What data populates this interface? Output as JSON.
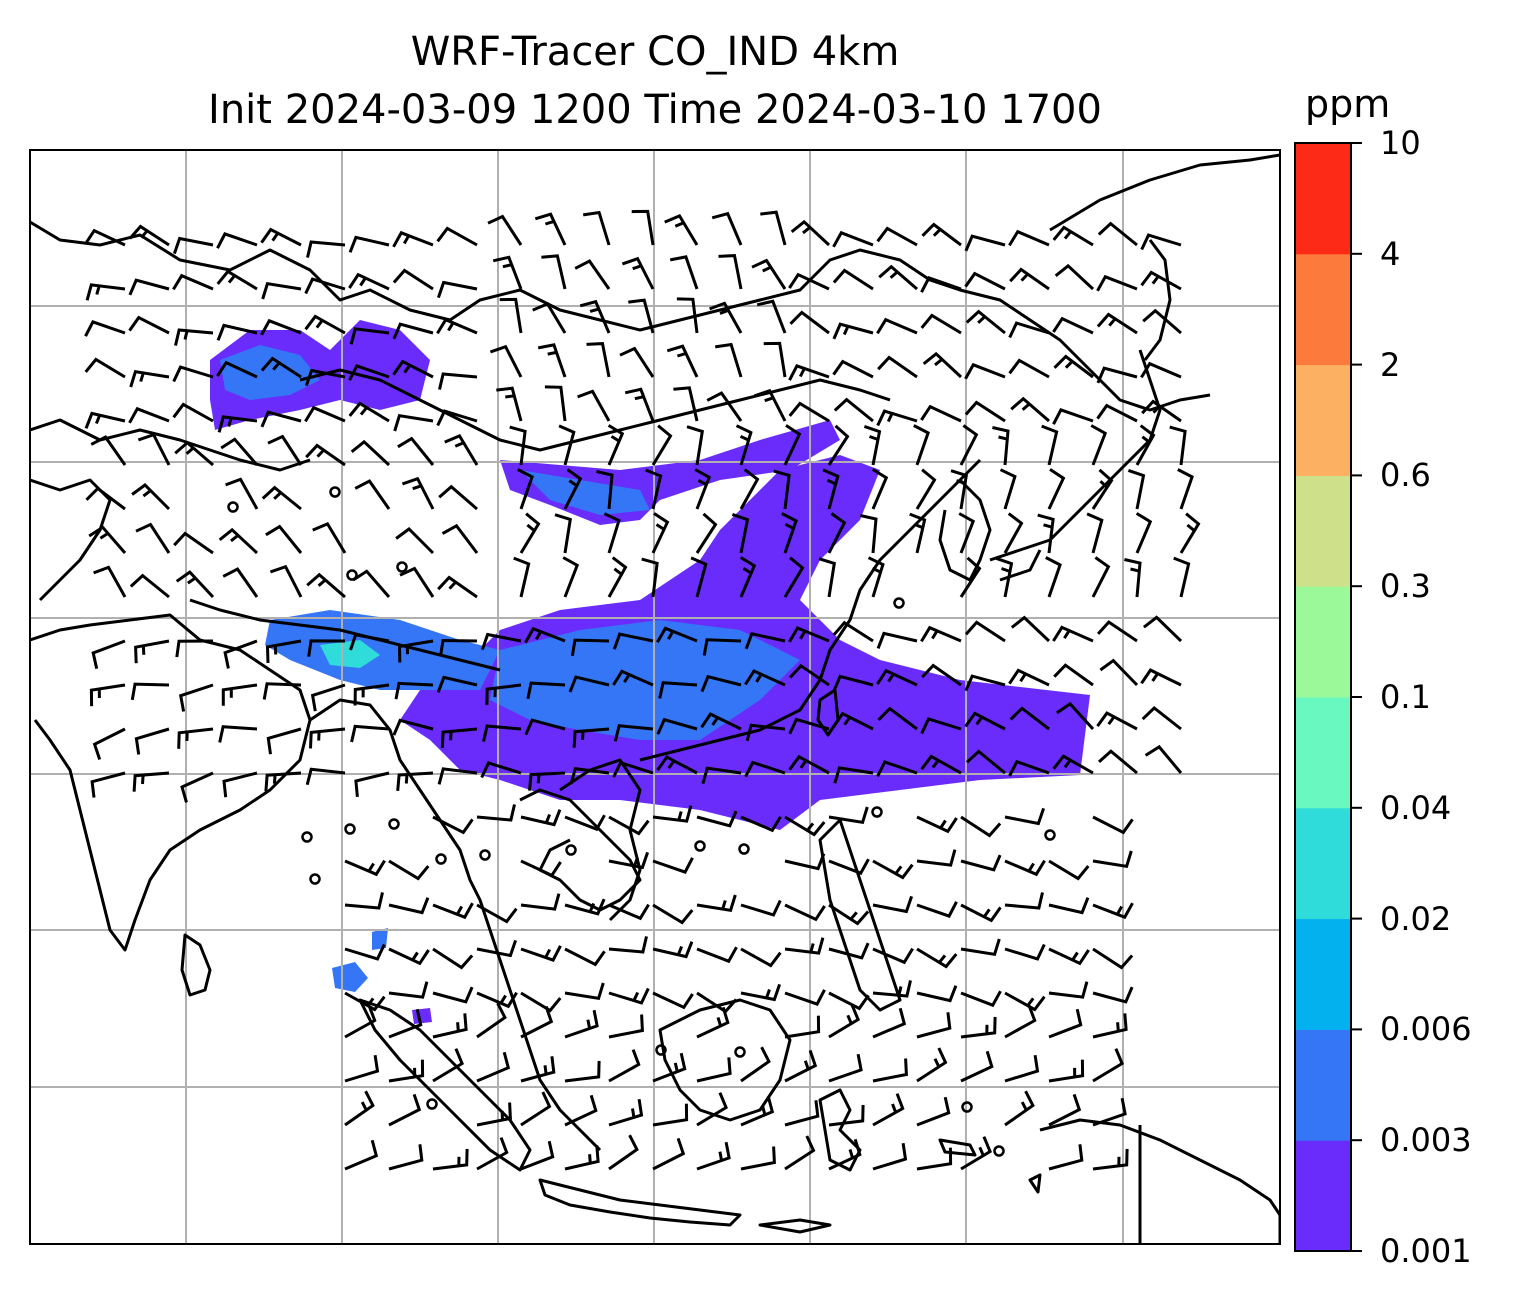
{
  "title": {
    "line1": "WRF-Tracer CO_IND 4km",
    "line2": "Init 2024-03-09 1200 Time 2024-03-10 1700"
  },
  "colorbar": {
    "unit": "ppm",
    "levels": [
      "0.001",
      "0.003",
      "0.006",
      "0.02",
      "0.04",
      "0.1",
      "0.3",
      "0.6",
      "2",
      "4",
      "10"
    ],
    "colors": [
      "#6a2cfb",
      "#3576f6",
      "#03b1ee",
      "#2fdcd9",
      "#69f8c0",
      "#9cf99a",
      "#cfe08a",
      "#fcb061",
      "#fc7a3b",
      "#fc2a16"
    ]
  },
  "map": {
    "colors": {
      "coast": "#000000",
      "grid": "#b0b0b0",
      "barb": "#000000",
      "tracer_low": "#6a2cfb",
      "tracer_mid": "#3576f6",
      "tracer_high": "#2fdcd9"
    }
  }
}
